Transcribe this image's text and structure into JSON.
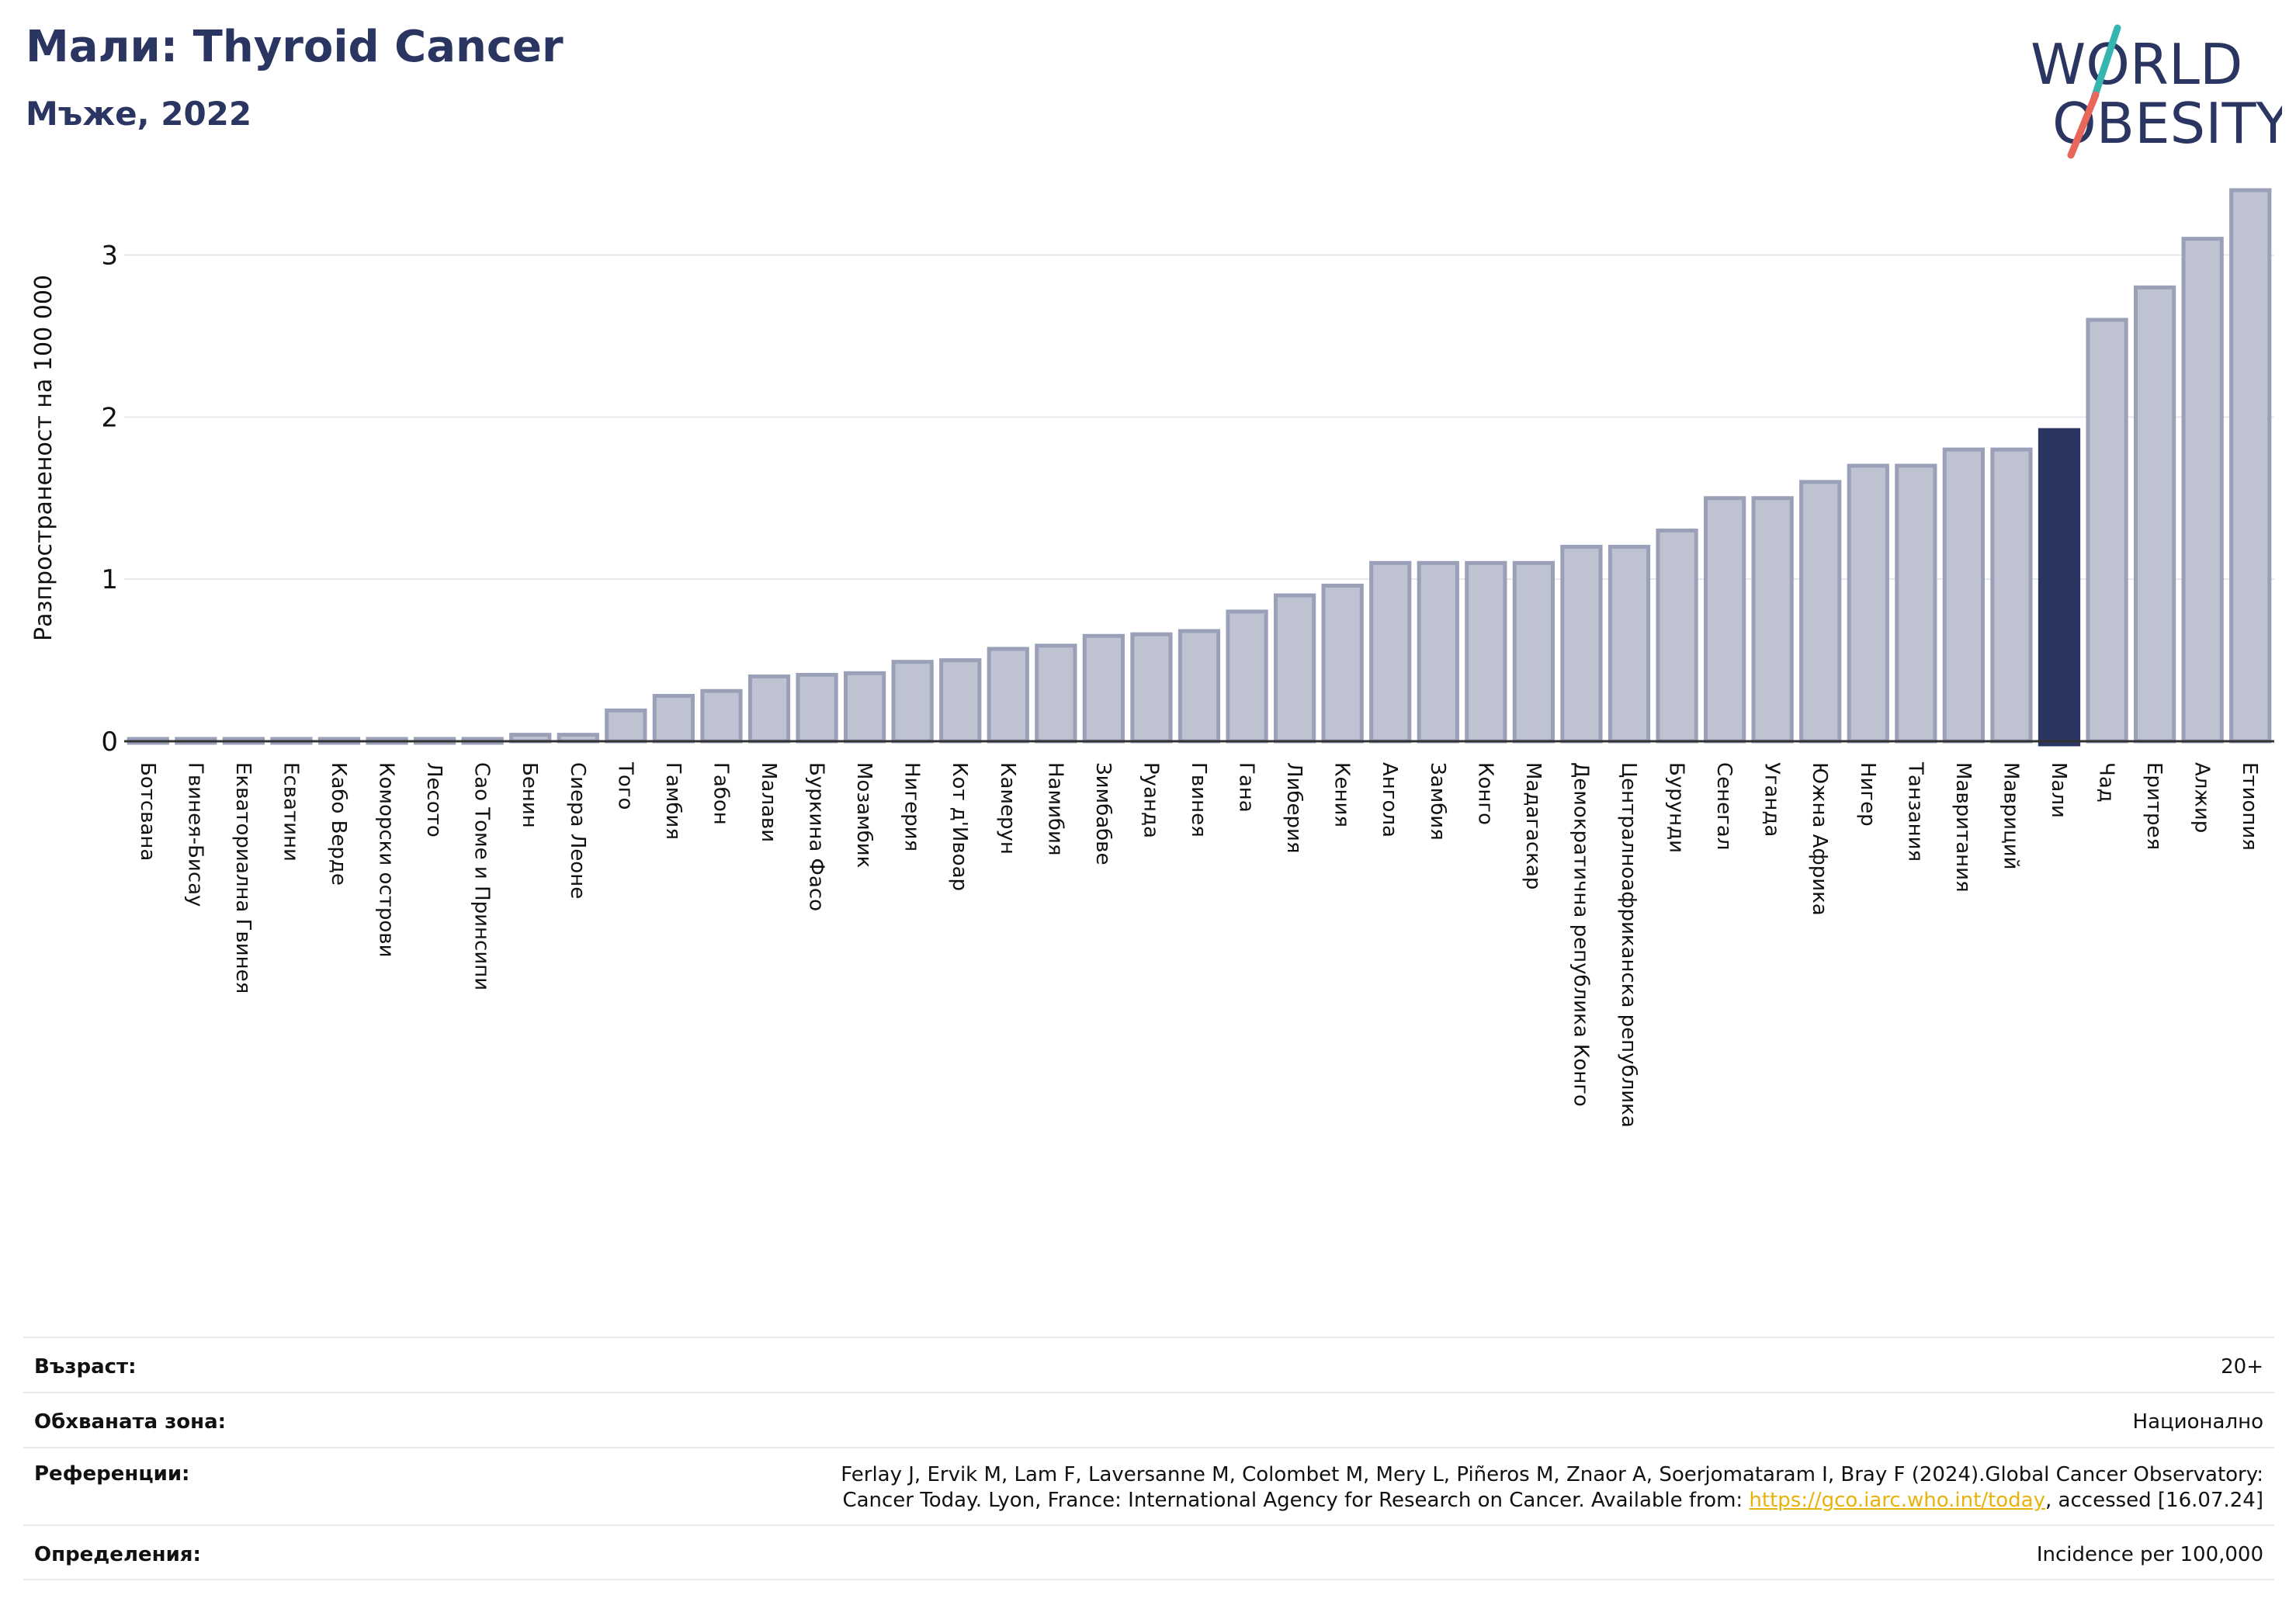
{
  "header": {
    "title": "Мали: Thyroid Cancer",
    "subtitle": "Мъже, 2022",
    "logo_line1": "WORLD",
    "logo_line2": "OBESITY"
  },
  "colors": {
    "bar": "#bfc2d0",
    "bar_stroke": "#9aa0b8",
    "highlight": "#2b3561",
    "grid": "#e6e8ef",
    "logo_slash_top": "#36b6b0",
    "logo_slash_bottom": "#e8665a"
  },
  "chart_data": {
    "type": "bar",
    "ylabel": "Разпространеност  на 100 000",
    "ylim": [
      0,
      3.4
    ],
    "yticks": [
      0,
      1,
      2,
      3
    ],
    "grid": true,
    "highlight": "Мали",
    "categories": [
      "Ботсвана",
      "Гвинея-Бисау",
      "Екваториална Гвинея",
      "Есватини",
      "Кабо Верде",
      "Коморски острови",
      "Лесото",
      "Сао Томе и Принсипи",
      "Бенин",
      "Сиера Леоне",
      "Того",
      "Гамбия",
      "Габон",
      "Малави",
      "Буркина Фасо",
      "Мозамбик",
      "Нигерия",
      "Кот д'Ивоар",
      "Камерун",
      "Намибия",
      "Зимбабве",
      "Руанда",
      "Гвинея",
      "Гана",
      "Либерия",
      "Кения",
      "Ангола",
      "Замбия",
      "Конго",
      "Мадагаскар",
      "Демократична република Конго",
      "Централноафриканска република",
      "Бурунди",
      "Сенегал",
      "Уганда",
      "Южна Африка",
      "Нигер",
      "Танзания",
      "Мавритания",
      "Мавриций",
      "Мали",
      "Чад",
      "Еритрея",
      "Алжир",
      "Етиопия"
    ],
    "values": [
      0,
      0,
      0,
      0,
      0,
      0,
      0,
      0,
      0.04,
      0.04,
      0.19,
      0.28,
      0.31,
      0.4,
      0.41,
      0.42,
      0.49,
      0.5,
      0.57,
      0.59,
      0.65,
      0.66,
      0.68,
      0.8,
      0.9,
      0.96,
      1.1,
      1.1,
      1.1,
      1.1,
      1.2,
      1.2,
      1.3,
      1.5,
      1.5,
      1.6,
      1.7,
      1.7,
      1.8,
      1.8,
      1.92,
      2.6,
      2.8,
      3.1,
      3.4
    ]
  },
  "info": {
    "age_label": "Възраст:",
    "age_value": "20+",
    "coverage_label": "Обхваната зона:",
    "coverage_value": "Национално",
    "references_label": "Референции:",
    "references_line1": "Ferlay J, Ervik M, Lam F, Laversanne M, Colombet M, Mery L, Piñeros M, Znaor A, Soerjomataram I, Bray F (2024).Global Cancer Observatory:",
    "references_line2_pre": "Cancer Today. Lyon, France: International Agency for Research on Cancer. Available from: ",
    "references_link": "https://gco.iarc.who.int/today",
    "references_line2_post": ", accessed [16.07.24]",
    "definitions_label": "Определения:",
    "definitions_value": "Incidence per 100,000"
  }
}
